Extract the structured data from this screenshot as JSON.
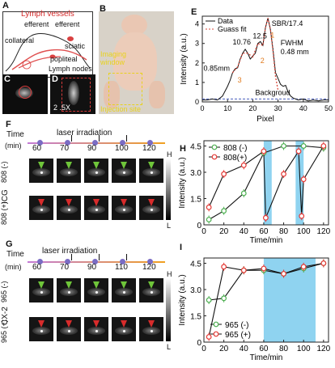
{
  "panel_labels": {
    "a": "A",
    "b": "B",
    "c": "C",
    "d": "D",
    "e": "E",
    "f": "F",
    "g": "G",
    "h": "H",
    "i": "I"
  },
  "panel_a": {
    "title": "Lymph vessels",
    "efferent1": "efferent",
    "efferent2": "efferent",
    "collateral": "collateral",
    "sciatic": "sciatic",
    "popliteal": "popliteal",
    "lymph_nodes": "Lymph nodes"
  },
  "panel_b": {
    "imaging_window": "Imaging window",
    "injection_site": "Injection site"
  },
  "panel_d": {
    "magnification": "2 .5X"
  },
  "chart_e": {
    "type": "line",
    "legend": [
      "Data",
      "Guass fit"
    ],
    "annotations": {
      "sbr": "SBR/17.4",
      "fwhm": "FWHM",
      "fwhm_value": "0.48 mm",
      "p1": "0.85mm",
      "p2": "10.76",
      "p3": "12.5",
      "background": "Backgroud"
    },
    "peak_labels": [
      "3",
      "2",
      "1"
    ],
    "xlabel": "Pixel",
    "ylabel": "Intensity (a.u.)",
    "xticks": [
      "0",
      "10",
      "20",
      "30",
      "40",
      "50"
    ],
    "yticks": [
      "0",
      "1",
      "2",
      "3",
      "4"
    ],
    "xlim": [
      0,
      50
    ],
    "ylim": [
      0,
      4.4
    ],
    "data_x": [
      0,
      2,
      4,
      6,
      8,
      10,
      11,
      12,
      13,
      14,
      15,
      16,
      17,
      18,
      19,
      20,
      21,
      22,
      23,
      24,
      25,
      26,
      27,
      28,
      29,
      30,
      31,
      32,
      33,
      34,
      35,
      36,
      38,
      40,
      42,
      44,
      46,
      48,
      50
    ],
    "data_y": [
      0.1,
      0.1,
      0.15,
      0.1,
      0.3,
      0.8,
      1.1,
      1.5,
      1.7,
      1.75,
      2.2,
      2.5,
      2.7,
      2.5,
      2.2,
      2.35,
      2.5,
      3.0,
      3.1,
      2.9,
      3.8,
      4.3,
      3.7,
      2.7,
      1.5,
      1.2,
      0.9,
      0.8,
      0.85,
      0.5,
      0.3,
      0.2,
      0.1,
      0.15,
      0.05,
      0.1,
      0.05,
      0.1,
      0.1
    ],
    "fit_x": [
      12,
      14,
      16,
      18,
      20,
      22,
      24,
      25,
      26,
      27,
      28,
      29,
      30
    ],
    "fit_y": [
      1.5,
      1.8,
      2.5,
      2.5,
      2.3,
      3.0,
      2.9,
      3.8,
      4.3,
      3.7,
      2.6,
      1.3,
      0.6
    ],
    "background_level": 0.15
  },
  "panel_f": {
    "time_label": "Time",
    "time_unit": "(min)",
    "laser": "laser irradiation",
    "times": [
      "60",
      "70",
      "90",
      "100",
      "120"
    ],
    "row1": "808 (-)",
    "row2": "808 (+)",
    "dye": "ICG",
    "cbar_high": "H",
    "cbar_low": "L"
  },
  "panel_g": {
    "time_label": "Time",
    "time_unit": "(min)",
    "laser": "laser irradiation",
    "times": [
      "60",
      "70",
      "90",
      "110",
      "120"
    ],
    "row1": "965 (-)",
    "row2": "965 (+)",
    "dye": "CX-2",
    "cbar_high": "H",
    "cbar_low": "L"
  },
  "chart_h": {
    "type": "line",
    "xlabel": "Time/min",
    "ylabel": "Intensity (a.u.)",
    "xticks": [
      "0",
      "20",
      "40",
      "60",
      "80",
      "100",
      "120"
    ],
    "yticks": [
      "0",
      "1.5",
      "3.0",
      "4.5"
    ],
    "xlim": [
      0,
      125
    ],
    "ylim": [
      0,
      4.8
    ],
    "shaded": [
      [
        60,
        68
      ],
      [
        92,
        100
      ]
    ],
    "series": [
      {
        "name": "808(-)",
        "color": "#4caf50",
        "x": [
          5,
          20,
          40,
          60,
          80,
          100,
          120
        ],
        "y": [
          0.3,
          0.8,
          1.8,
          4.1,
          4.5,
          4.5,
          4.4
        ]
      },
      {
        "name": "808(+)",
        "color": "#e53935",
        "x": [
          5,
          20,
          40,
          60,
          62,
          80,
          95,
          98,
          100,
          120
        ],
        "y": [
          1.0,
          2.9,
          3.4,
          4.2,
          0.4,
          2.9,
          4.2,
          0.5,
          2.6,
          4.5
        ]
      }
    ],
    "legend": [
      "808 (-)",
      "808(+)"
    ]
  },
  "chart_i": {
    "type": "line",
    "xlabel": "Time/min",
    "ylabel": "Intensity (a.u.)",
    "xticks": [
      "0",
      "20",
      "40",
      "60",
      "80",
      "100",
      "120"
    ],
    "yticks": [
      "0",
      "1.5",
      "3.0",
      "4.5"
    ],
    "xlim": [
      0,
      125
    ],
    "ylim": [
      0,
      4.8
    ],
    "shaded": [
      [
        60,
        112
      ]
    ],
    "series": [
      {
        "name": "965 (-)",
        "color": "#4caf50",
        "x": [
          5,
          20,
          40,
          60,
          80,
          100,
          120
        ],
        "y": [
          2.4,
          2.5,
          4.1,
          4.1,
          3.9,
          4.2,
          4.5
        ]
      },
      {
        "name": "965 (+)",
        "color": "#e53935",
        "x": [
          5,
          20,
          40,
          60,
          80,
          100,
          120
        ],
        "y": [
          0.3,
          4.3,
          4.1,
          4.2,
          3.9,
          4.3,
          4.5
        ]
      }
    ],
    "legend": [
      "965 (-)",
      "965 (+)"
    ]
  },
  "colors": {
    "green": "#4caf50",
    "red": "#e53935",
    "shade": "#8fd3f0",
    "fit": "#d9483b",
    "background": "#4a5fbf"
  }
}
